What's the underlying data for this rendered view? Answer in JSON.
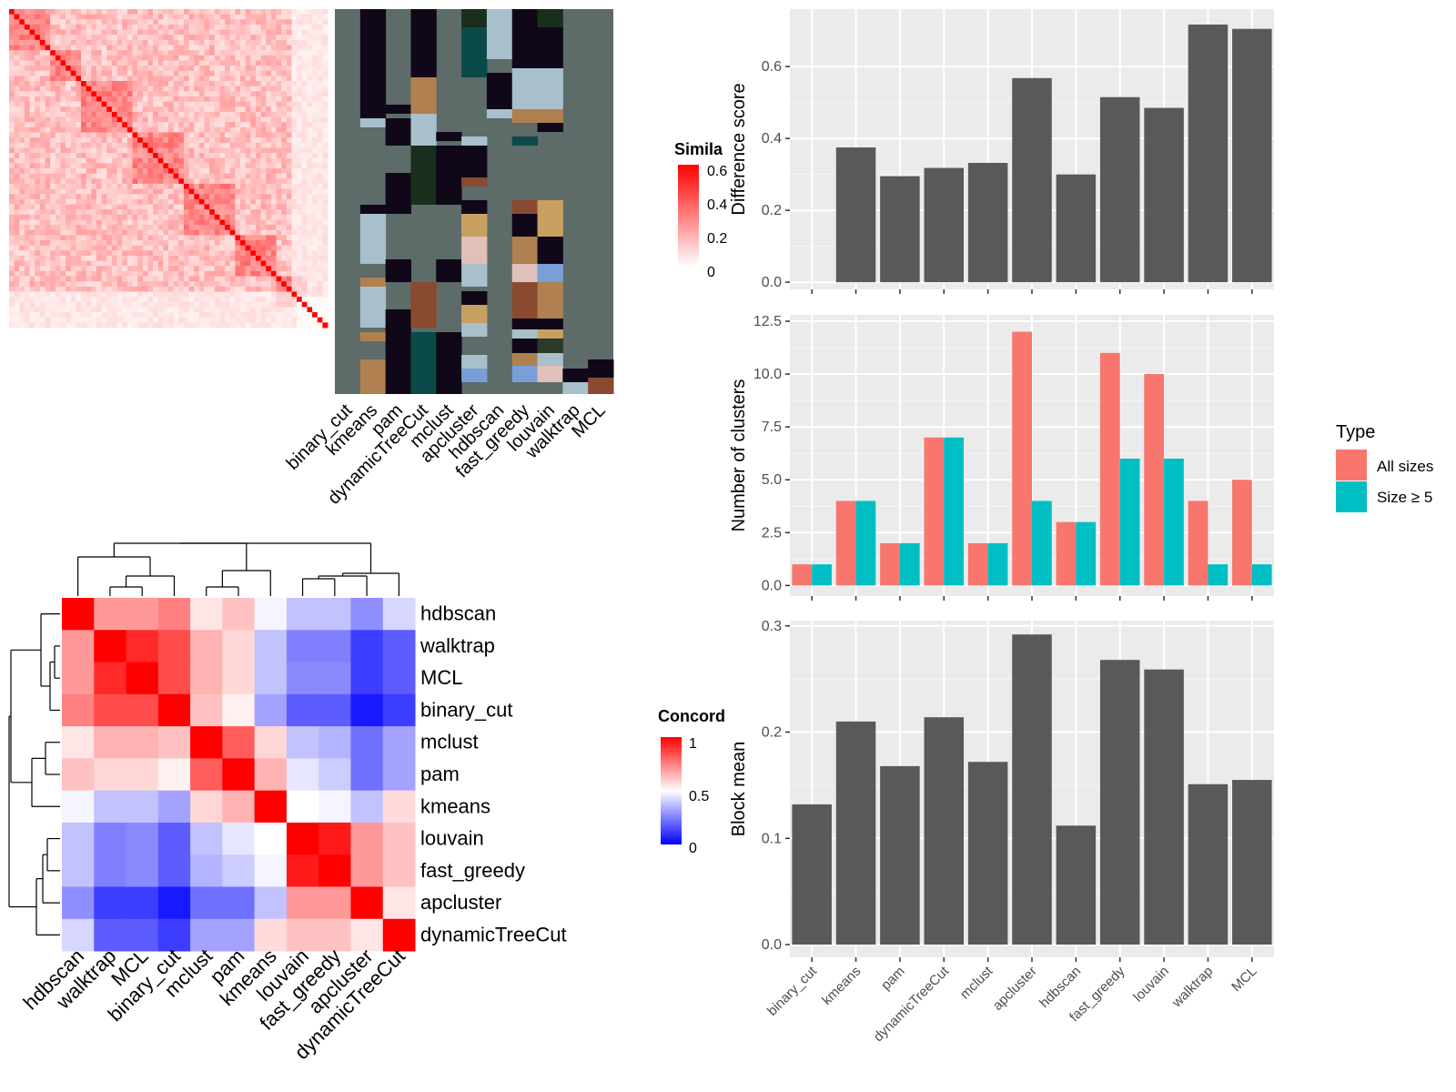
{
  "sim_legend": {
    "title": "Simila",
    "ticks": [
      "0.6",
      "0.4",
      "0.2",
      "0"
    ]
  },
  "conc_legend": {
    "title": "Concord",
    "ticks": [
      "1",
      "0.5",
      "0"
    ]
  },
  "type_legend": {
    "title": "Type",
    "items": [
      "All sizes",
      "Size ≥ 5"
    ]
  },
  "colors": {
    "all_sizes": "#F8766D",
    "size5": "#00BFC4",
    "bar": "#595959",
    "panel_bg": "#EBEBEB",
    "clusterbar_bg": "#5d6b69"
  },
  "chart_data": [
    {
      "type": "heatmap",
      "title": "",
      "xlabel": "",
      "ylabel": "",
      "categories": [
        "binary_cut",
        "kmeans",
        "pam",
        "dynamicTreeCut",
        "mclust",
        "apcluster",
        "hdbscan",
        "fast_greedy",
        "louvain",
        "walktrap",
        "MCL"
      ],
      "legend": {
        "title": "Simila",
        "range": [
          0,
          0.6
        ]
      },
      "note": "term-similarity heatmap with cluster-assignment color bars"
    },
    {
      "type": "heatmap",
      "xlabel": "",
      "ylabel": "",
      "categories": [
        "hdbscan",
        "walktrap",
        "MCL",
        "binary_cut",
        "mclust",
        "pam",
        "kmeans",
        "louvain",
        "fast_greedy",
        "apcluster",
        "dynamicTreeCut"
      ],
      "values": [
        [
          1.0,
          0.7,
          0.7,
          0.75,
          0.55,
          0.62,
          0.48,
          0.38,
          0.38,
          0.28,
          0.42
        ],
        [
          0.7,
          1.0,
          0.92,
          0.85,
          0.65,
          0.58,
          0.38,
          0.25,
          0.25,
          0.12,
          0.18
        ],
        [
          0.7,
          0.92,
          1.0,
          0.85,
          0.65,
          0.58,
          0.38,
          0.27,
          0.27,
          0.12,
          0.18
        ],
        [
          0.75,
          0.85,
          0.85,
          1.0,
          0.62,
          0.53,
          0.32,
          0.18,
          0.18,
          0.05,
          0.12
        ],
        [
          0.55,
          0.65,
          0.65,
          0.62,
          1.0,
          0.82,
          0.58,
          0.38,
          0.35,
          0.22,
          0.32
        ],
        [
          0.62,
          0.58,
          0.58,
          0.53,
          0.82,
          1.0,
          0.65,
          0.45,
          0.4,
          0.22,
          0.32
        ],
        [
          0.48,
          0.38,
          0.38,
          0.32,
          0.58,
          0.65,
          1.0,
          0.5,
          0.48,
          0.38,
          0.57
        ],
        [
          0.38,
          0.25,
          0.27,
          0.18,
          0.38,
          0.45,
          0.5,
          1.0,
          0.95,
          0.7,
          0.62
        ],
        [
          0.38,
          0.25,
          0.27,
          0.18,
          0.35,
          0.4,
          0.48,
          0.95,
          1.0,
          0.7,
          0.62
        ],
        [
          0.28,
          0.12,
          0.12,
          0.05,
          0.22,
          0.22,
          0.38,
          0.7,
          0.7,
          1.0,
          0.55
        ],
        [
          0.42,
          0.18,
          0.18,
          0.12,
          0.32,
          0.32,
          0.57,
          0.62,
          0.62,
          0.55,
          1.0
        ]
      ],
      "legend": {
        "title": "Concord",
        "range": [
          0,
          1
        ],
        "ticks": [
          0,
          0.5,
          1
        ]
      }
    },
    {
      "type": "bar",
      "categories": [
        "binary_cut",
        "kmeans",
        "pam",
        "dynamicTreeCut",
        "mclust",
        "apcluster",
        "hdbscan",
        "fast_greedy",
        "louvain",
        "walktrap",
        "MCL"
      ],
      "values": [
        0,
        0.375,
        0.295,
        0.318,
        0.332,
        0.568,
        0.3,
        0.515,
        0.485,
        0.717,
        0.705
      ],
      "ylabel": "Difference score",
      "ylim": [
        -0.02,
        0.76
      ],
      "yticks": [
        "0.0",
        "0.2",
        "0.4",
        "0.6"
      ]
    },
    {
      "type": "bar",
      "categories": [
        "binary_cut",
        "kmeans",
        "pam",
        "dynamicTreeCut",
        "mclust",
        "apcluster",
        "hdbscan",
        "fast_greedy",
        "louvain",
        "walktrap",
        "MCL"
      ],
      "series": [
        {
          "name": "All sizes",
          "values": [
            1,
            4,
            2,
            7,
            2,
            12,
            3,
            11,
            10,
            4,
            5
          ]
        },
        {
          "name": "Size ≥ 5",
          "values": [
            1,
            4,
            2,
            7,
            2,
            4,
            3,
            6,
            6,
            1,
            1
          ]
        }
      ],
      "ylabel": "Number of clusters",
      "ylim": [
        -0.5,
        12.8
      ],
      "yticks": [
        "0.0",
        "2.5",
        "5.0",
        "7.5",
        "10.0",
        "12.5"
      ],
      "legend": "right"
    },
    {
      "type": "bar",
      "categories": [
        "binary_cut",
        "kmeans",
        "pam",
        "dynamicTreeCut",
        "mclust",
        "apcluster",
        "hdbscan",
        "fast_greedy",
        "louvain",
        "walktrap",
        "MCL"
      ],
      "values": [
        0.132,
        0.21,
        0.168,
        0.214,
        0.172,
        0.292,
        0.112,
        0.268,
        0.259,
        0.151,
        0.155
      ],
      "ylabel": "Block mean",
      "ylim": [
        -0.012,
        0.305
      ],
      "yticks": [
        "0.0",
        "0.1",
        "0.2",
        "0.3"
      ]
    }
  ]
}
